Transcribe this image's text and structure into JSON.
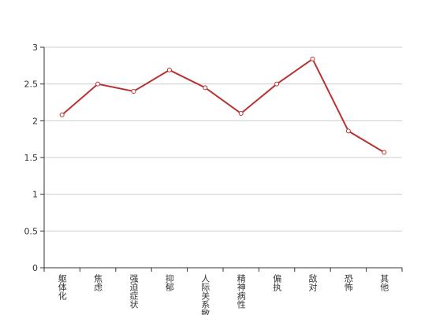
{
  "chart_data": {
    "type": "line",
    "categories": [
      "躯体化",
      "焦虑",
      "强迫症状",
      "抑郁",
      "人际关系敏感",
      "精神病性",
      "偏执",
      "敌对",
      "恐怖",
      "其他"
    ],
    "series": [
      {
        "color": "#b83232",
        "values": [
          2.08,
          2.5,
          2.4,
          2.69,
          2.45,
          2.1,
          2.5,
          2.84,
          1.86,
          1.57
        ]
      }
    ],
    "ylim": [
      0,
      3
    ],
    "yticks": [
      0,
      0.5,
      1,
      1.5,
      2,
      2.5,
      3
    ],
    "grid": true
  }
}
